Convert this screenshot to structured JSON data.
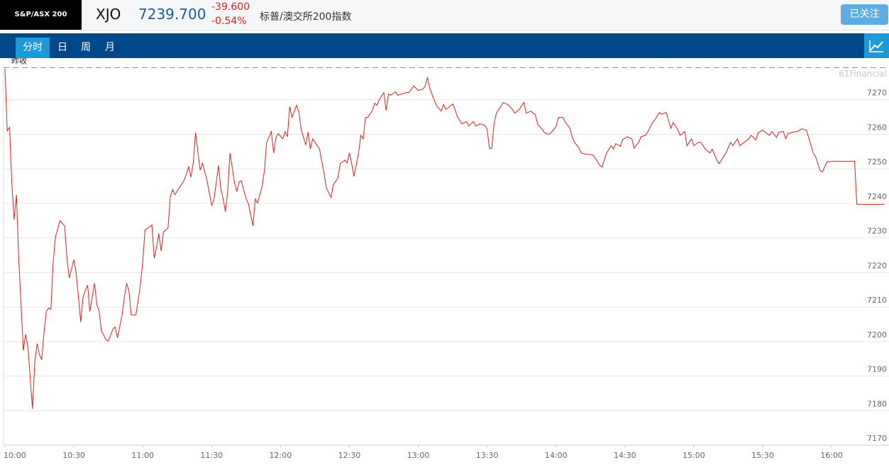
{
  "header": {
    "logo": "S&P/ASX 200",
    "symbol": "XJO",
    "price": "7239.700",
    "change": "-39.600",
    "change_pct": "-0.54%",
    "name": "标普/澳交所200指数",
    "follow_button": "已关注"
  },
  "tabs": [
    "分时",
    "日",
    "周",
    "月"
  ],
  "chart_data": {
    "type": "line",
    "color": "#d8201c",
    "watermark": "61Financial",
    "prev_close": {
      "label": "昨收",
      "value": 7279.3
    },
    "xlim": [
      "10:00",
      "16:25"
    ],
    "ylim": [
      7170,
      7280
    ],
    "yticks": [
      7170,
      7180,
      7190,
      7200,
      7210,
      7220,
      7230,
      7240,
      7250,
      7260,
      7270
    ],
    "xticks": [
      "10:00",
      "10:30",
      "11:00",
      "11:30",
      "12:00",
      "12:30",
      "13:00",
      "13:30",
      "14:00",
      "14:30",
      "15:00",
      "15:30",
      "16:00"
    ],
    "grid": true,
    "x": [
      "10:00",
      "10:01",
      "10:02",
      "10:03",
      "10:04",
      "10:05",
      "10:06",
      "10:07",
      "10:08",
      "10:09",
      "10:10",
      "10:11",
      "10:12",
      "10:13",
      "10:14",
      "10:15",
      "10:16",
      "10:17",
      "10:18",
      "10:19",
      "10:20",
      "10:21",
      "10:22",
      "10:24",
      "10:26",
      "10:27",
      "10:28",
      "10:30",
      "10:31",
      "10:32",
      "10:33",
      "10:34",
      "10:35",
      "10:36",
      "10:37",
      "10:38",
      "10:39",
      "10:40",
      "10:41",
      "10:42",
      "10:44",
      "10:45",
      "10:47",
      "10:48",
      "10:49",
      "10:51",
      "10:52",
      "10:53",
      "10:54",
      "10:55",
      "10:57",
      "10:58",
      "10:59",
      "11:00",
      "11:01",
      "11:04",
      "11:05",
      "11:06",
      "11:07",
      "11:08",
      "11:09",
      "11:11",
      "11:12",
      "11:13",
      "11:14",
      "11:16",
      "11:18",
      "11:19",
      "11:20",
      "11:21",
      "11:22",
      "11:23",
      "11:25",
      "11:26",
      "11:28",
      "11:30",
      "11:31",
      "11:32",
      "11:33",
      "11:34",
      "11:35",
      "11:36",
      "11:37",
      "11:38",
      "11:40",
      "11:41",
      "11:42",
      "11:43",
      "11:45",
      "11:46",
      "11:48",
      "11:49",
      "11:50",
      "11:52",
      "11:53",
      "11:54",
      "11:56",
      "11:57",
      "11:58",
      "11:59",
      "12:01",
      "12:02",
      "12:03",
      "12:04",
      "12:05",
      "12:07",
      "12:08",
      "12:09",
      "12:11",
      "12:12",
      "12:13",
      "12:14",
      "12:15",
      "12:17",
      "12:19",
      "12:20",
      "12:22",
      "12:23",
      "12:25",
      "12:26",
      "12:28",
      "12:29",
      "12:30",
      "12:31",
      "12:32",
      "12:34",
      "12:35",
      "12:36",
      "12:37",
      "12:38",
      "12:40",
      "12:41",
      "12:42",
      "12:43",
      "12:45",
      "12:46",
      "12:47",
      "12:48",
      "12:50",
      "12:51",
      "12:53",
      "12:55",
      "12:56",
      "12:58",
      "13:00",
      "13:02",
      "13:03",
      "13:04",
      "13:05",
      "13:07",
      "13:08",
      "13:10",
      "13:11",
      "13:12",
      "13:14",
      "13:15",
      "13:16",
      "13:17",
      "13:19",
      "13:21",
      "13:22",
      "13:24",
      "13:25",
      "13:27",
      "13:29",
      "13:30",
      "13:31",
      "13:32",
      "13:33",
      "13:34",
      "13:36",
      "13:37",
      "13:39",
      "13:41",
      "13:42",
      "13:44",
      "13:46",
      "13:47",
      "13:49",
      "13:51",
      "13:52",
      "13:54",
      "13:55",
      "13:57",
      "13:58",
      "14:00",
      "14:01",
      "14:03",
      "14:04",
      "14:06",
      "14:07",
      "14:08",
      "14:10",
      "14:11",
      "14:13",
      "14:14",
      "14:16",
      "14:17",
      "14:19",
      "14:20",
      "14:22",
      "14:24",
      "14:25",
      "14:26",
      "14:28",
      "14:29",
      "14:31",
      "14:33",
      "14:34",
      "14:36",
      "14:37",
      "14:39",
      "14:40",
      "14:42",
      "14:43",
      "14:45",
      "14:46",
      "14:48",
      "14:50",
      "14:51",
      "14:53",
      "14:54",
      "14:56",
      "14:57",
      "14:59",
      "15:00",
      "15:02",
      "15:03",
      "15:05",
      "15:07",
      "15:08",
      "15:10",
      "15:11",
      "15:13",
      "15:14",
      "15:16",
      "15:17",
      "15:19",
      "15:20",
      "15:22",
      "15:24",
      "15:25",
      "15:27",
      "15:28",
      "15:30",
      "15:31",
      "15:33",
      "15:34",
      "15:36",
      "15:37",
      "15:39",
      "15:40",
      "15:41",
      "15:43",
      "15:45",
      "15:47",
      "15:49",
      "15:50",
      "15:52",
      "15:53",
      "15:55",
      "15:56",
      "15:58",
      "16:01",
      "16:10",
      "16:11",
      "16:23"
    ],
    "values": [
      7279.0,
      7261.0,
      7262.0,
      7245.6,
      7235.3,
      7242.5,
      7224.0,
      7210.7,
      7197.4,
      7202.1,
      7198.4,
      7189.2,
      7180.5,
      7194.3,
      7199.4,
      7196.3,
      7194.7,
      7202.5,
      7208.7,
      7209.7,
      7209.3,
      7223.1,
      7230.3,
      7235.0,
      7233.4,
      7224.1,
      7218.4,
      7223.7,
      7220.0,
      7212.8,
      7205.6,
      7212.8,
      7214.8,
      7216.3,
      7208.7,
      7212.8,
      7216.9,
      7210.7,
      7208.7,
      7203.1,
      7200.5,
      7200.1,
      7203.6,
      7204.2,
      7201.1,
      7207.7,
      7212.8,
      7216.9,
      7214.5,
      7207.7,
      7207.7,
      7211.8,
      7216.5,
      7223.1,
      7232.3,
      7233.7,
      7224.1,
      7227.2,
      7231.3,
      7226.2,
      7231.7,
      7232.9,
      7241.9,
      7244.0,
      7242.5,
      7244.6,
      7246.6,
      7248.5,
      7250.7,
      7247.6,
      7251.7,
      7260.5,
      7249.6,
      7251.7,
      7246.6,
      7239.4,
      7241.0,
      7245.9,
      7251.0,
      7244.4,
      7241.3,
      7237.6,
      7243.4,
      7254.6,
      7245.9,
      7243.4,
      7246.3,
      7246.5,
      7241.3,
      7239.9,
      7233.5,
      7241.3,
      7240.1,
      7245.0,
      7249.5,
      7257.7,
      7260.8,
      7254.6,
      7259.1,
      7260.2,
      7258.7,
      7260.8,
      7259.3,
      7268.0,
      7264.9,
      7268.4,
      7266.3,
      7261.4,
      7256.9,
      7260.6,
      7255.7,
      7258.7,
      7257.7,
      7255.7,
      7248.5,
      7244.4,
      7241.7,
      7245.4,
      7247.4,
      7251.5,
      7252.5,
      7251.7,
      7254.6,
      7251.5,
      7247.8,
      7254.6,
      7259.7,
      7258.7,
      7264.9,
      7264.9,
      7266.9,
      7269.0,
      7268.4,
      7270.0,
      7272.1,
      7266.9,
      7271.7,
      7271.3,
      7272.3,
      7271.3,
      7271.7,
      7272.1,
      7272.1,
      7274.0,
      7272.7,
      7273.1,
      7274.0,
      7276.5,
      7273.3,
      7269.8,
      7268.2,
      7266.7,
      7268.6,
      7267.2,
      7268.2,
      7268.8,
      7267.2,
      7265.1,
      7263.0,
      7263.7,
      7262.4,
      7263.7,
      7262.4,
      7263.0,
      7262.6,
      7261.4,
      7255.9,
      7255.9,
      7263.0,
      7266.1,
      7268.2,
      7269.2,
      7268.6,
      7267.2,
      7266.1,
      7267.2,
      7269.2,
      7266.1,
      7266.7,
      7265.6,
      7262.9,
      7261.4,
      7260.4,
      7260.0,
      7260.6,
      7262.2,
      7264.9,
      7264.9,
      7263.5,
      7261.8,
      7259.3,
      7257.7,
      7256.0,
      7254.6,
      7254.2,
      7254.2,
      7254.0,
      7253.2,
      7251.1,
      7250.5,
      7254.6,
      7256.7,
      7255.7,
      7257.3,
      7256.5,
      7258.5,
      7259.3,
      7258.7,
      7256.0,
      7257.7,
      7259.3,
      7259.7,
      7260.8,
      7263.4,
      7264.2,
      7266.3,
      7265.8,
      7266.3,
      7261.7,
      7263.4,
      7261.4,
      7259.7,
      7260.8,
      7256.7,
      7258.7,
      7256.7,
      7257.7,
      7257.7,
      7255.7,
      7254.6,
      7255.7,
      7252.5,
      7251.5,
      7253.6,
      7254.6,
      7257.7,
      7256.7,
      7258.7,
      7256.7,
      7257.7,
      7258.7,
      7259.7,
      7258.3,
      7260.4,
      7261.2,
      7260.6,
      7259.7,
      7260.8,
      7259.1,
      7260.6,
      7260.8,
      7258.7,
      7260.2,
      7260.6,
      7260.8,
      7261.6,
      7261.2,
      7259.1,
      7254.6,
      7253.6,
      7249.5,
      7249.1,
      7252.0,
      7252.2,
      7252.2,
      7239.7,
      7239.7
    ]
  }
}
